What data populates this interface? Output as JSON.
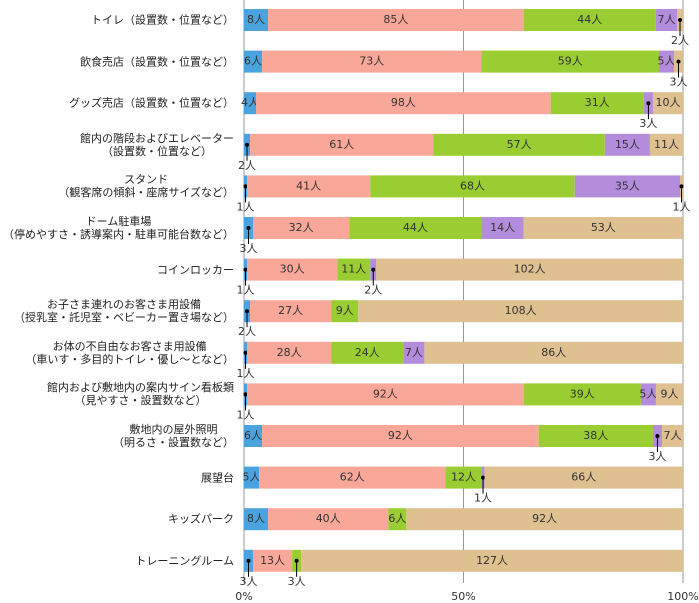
{
  "chart_data": {
    "type": "stacked-bar-100",
    "categories": [
      "トイレ（設置数・位置など）",
      "飲食売店（設置数・位置など）",
      "グッズ売店（設置数・位置など）",
      "館内の階段およびエレベーター\n（設置数・位置など）",
      "スタンド\n（観客席の傾斜・座席サイズなど）",
      "ドーム駐車場\n（停めやすさ・誘導案内・駐車可能台数など）",
      "コインロッカー",
      "お子さま連れのお客さま用設備\n（授乳室・託児室・ベビーカー置き場など）",
      "お体の不自由なお客さま用設備\n（車いす・多目的トイレ・優し〜となど）",
      "館内および敷地内の案内サイン看板類\n（見やすさ・設置数など）",
      "敷地内の屋外照明\n（明るさ・設置数など）",
      "展望台",
      "キッズパーク",
      "トレーニングルーム"
    ],
    "series": [
      {
        "color": "#4aa3df",
        "values": [
          8,
          6,
          4,
          2,
          1,
          3,
          1,
          2,
          1,
          1,
          6,
          5,
          8,
          3
        ],
        "value_labels": [
          "8人",
          "6人",
          "4人",
          "2人",
          "1人",
          "3人",
          "1人",
          "2人",
          "1人",
          "1人",
          "6人",
          "5人",
          "8人",
          "3人"
        ]
      },
      {
        "color": "#f9a799",
        "values": [
          85,
          73,
          98,
          61,
          41,
          32,
          30,
          27,
          28,
          92,
          92,
          62,
          40,
          13
        ],
        "value_labels": [
          "85人",
          "73人",
          "98人",
          "61人",
          "41人",
          "32人",
          "30人",
          "27人",
          "28人",
          "92人",
          "92人",
          "62人",
          "40人",
          "13人"
        ]
      },
      {
        "color": "#9acd32",
        "values": [
          44,
          59,
          31,
          57,
          68,
          44,
          11,
          9,
          24,
          39,
          38,
          12,
          6,
          3
        ],
        "value_labels": [
          "44人",
          "59人",
          "31人",
          "57人",
          "68人",
          "44人",
          "11人",
          "9人",
          "24人",
          "39人",
          "38人",
          "12人",
          "6人",
          "3人"
        ]
      },
      {
        "color": "#b48cdc",
        "values": [
          7,
          5,
          3,
          15,
          35,
          14,
          2,
          null,
          7,
          5,
          3,
          1,
          null,
          null
        ],
        "value_labels": [
          "7人",
          "5人",
          "3人",
          "15人",
          "35人",
          "14人",
          "2人",
          null,
          "7人",
          "5人",
          "3人",
          "1人",
          null,
          null
        ]
      },
      {
        "color": "#dfc090",
        "values": [
          2,
          3,
          10,
          11,
          1,
          53,
          102,
          108,
          86,
          9,
          7,
          66,
          92,
          127
        ],
        "value_labels": [
          "2人",
          "3人",
          "10人",
          "11人",
          "1人",
          "53人",
          "102人",
          "108人",
          "86人",
          "9人",
          "7人",
          "66人",
          "92人",
          "127人"
        ]
      }
    ],
    "xlim": [
      0,
      100
    ],
    "xticks": [
      {
        "value": 0,
        "label": "0%"
      },
      {
        "value": 50,
        "label": "50%"
      },
      {
        "value": 100,
        "label": "100%"
      }
    ],
    "grid": true
  }
}
